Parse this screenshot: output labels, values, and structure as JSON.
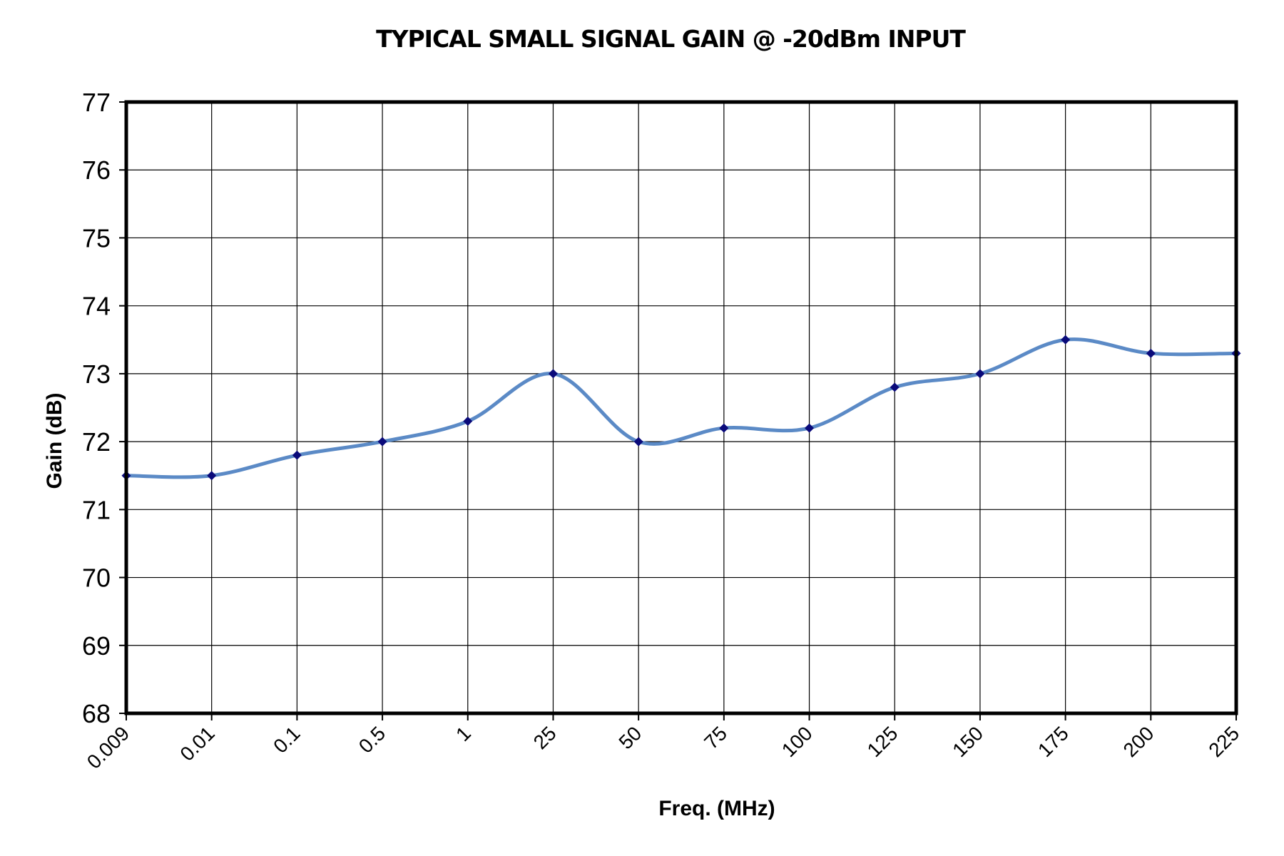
{
  "chart_data": {
    "type": "line",
    "title": "TYPICAL SMALL SIGNAL GAIN @ -20dBm INPUT",
    "xlabel": "Freq. (MHz)",
    "ylabel": "Gain (dB)",
    "categories": [
      "0.009",
      "0.01",
      "0.1",
      "0.5",
      "1",
      "25",
      "50",
      "75",
      "100",
      "125",
      "150",
      "175",
      "200",
      "225"
    ],
    "series": [
      {
        "values": [
          71.5,
          71.5,
          71.8,
          72.0,
          72.3,
          73.0,
          72.0,
          72.2,
          72.2,
          72.8,
          73.0,
          73.5,
          73.3,
          73.3
        ],
        "line_color": "#5b8ac6",
        "marker_color": "#0a0a7a",
        "marker": "diamond",
        "smooth": true
      }
    ],
    "ylim": [
      68,
      77
    ],
    "yticks": [
      "68",
      "69",
      "70",
      "71",
      "72",
      "73",
      "74",
      "75",
      "76",
      "77"
    ],
    "grid": true,
    "legend": "none"
  }
}
